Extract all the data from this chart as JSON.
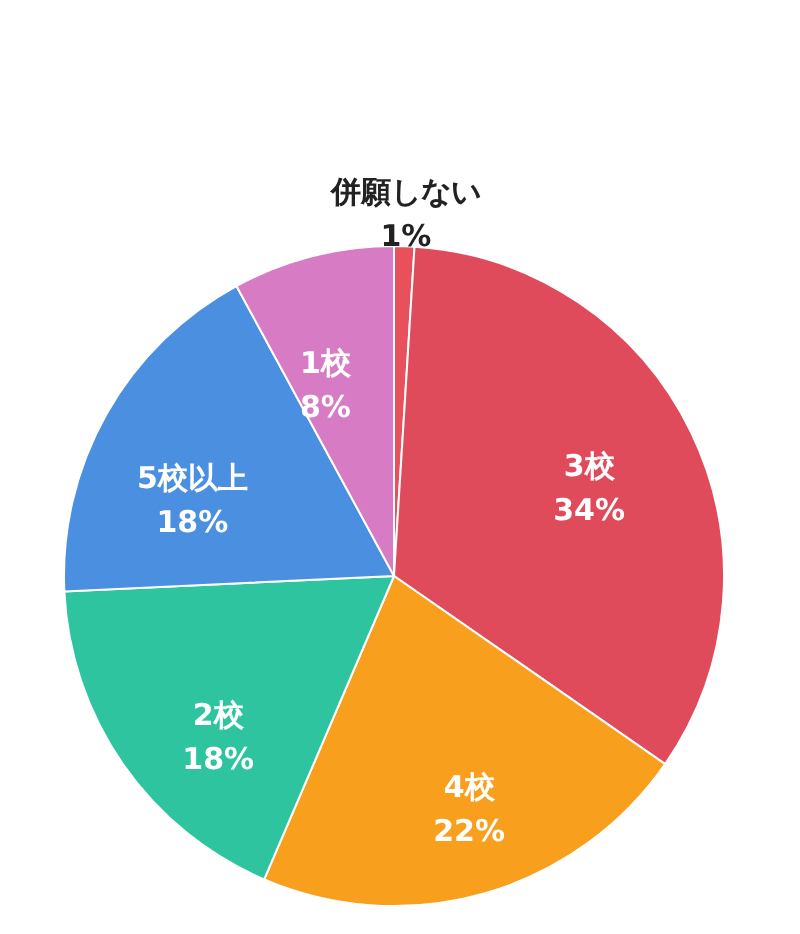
{
  "chart_data": {
    "type": "pie",
    "categories": [
      "併願しない",
      "3校",
      "4校",
      "2校",
      "5校以上",
      "1校"
    ],
    "values": [
      1,
      34,
      22,
      18,
      18,
      8
    ],
    "value_labels": [
      "1%",
      "34%",
      "22%",
      "18%",
      "18%",
      "8%"
    ],
    "colors": [
      "#e8505b",
      "#e04b5c",
      "#f99f1e",
      "#2ec4a0",
      "#4a8fe0",
      "#d77cc4"
    ],
    "legend": false
  }
}
